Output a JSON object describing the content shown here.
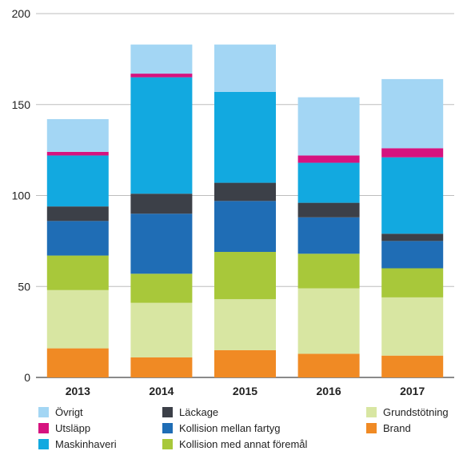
{
  "chart_data": {
    "type": "bar",
    "stacked": true,
    "title": "",
    "xlabel": "",
    "ylabel": "",
    "ylim": [
      0,
      200
    ],
    "yticks": [
      0,
      50,
      100,
      150,
      200
    ],
    "grid": true,
    "legend_position": "bottom",
    "categories": [
      "2013",
      "2014",
      "2015",
      "2016",
      "2017"
    ],
    "series": [
      {
        "name": "Brand",
        "color": "#f08a24",
        "values": [
          16,
          11,
          15,
          13,
          12
        ]
      },
      {
        "name": "Grundstötning",
        "color": "#d8e6a2",
        "values": [
          32,
          30,
          28,
          36,
          32
        ]
      },
      {
        "name": "Kollision med annat föremål",
        "color": "#a8c83a",
        "values": [
          19,
          16,
          26,
          19,
          16
        ]
      },
      {
        "name": "Kollision mellan fartyg",
        "color": "#1f6db5",
        "values": [
          19,
          33,
          28,
          20,
          15
        ]
      },
      {
        "name": "Läckage",
        "color": "#3c4048",
        "values": [
          8,
          11,
          10,
          8,
          4
        ]
      },
      {
        "name": "Maskinhaveri",
        "color": "#12a9e0",
        "values": [
          28,
          64,
          50,
          22,
          42
        ]
      },
      {
        "name": "Utsläpp",
        "color": "#d6137f",
        "values": [
          2,
          2,
          0,
          4,
          5
        ]
      },
      {
        "name": "Övrigt",
        "color": "#a3d6f4",
        "values": [
          18,
          16,
          26,
          32,
          38
        ]
      }
    ]
  },
  "legend": {
    "col1": [
      "Övrigt",
      "Utsläpp",
      "Maskinhaveri"
    ],
    "col2": [
      "Läckage",
      "Kollision mellan fartyg",
      "Kollision med annat föremål"
    ],
    "col3": [
      "Grundstötning",
      "Brand"
    ]
  }
}
